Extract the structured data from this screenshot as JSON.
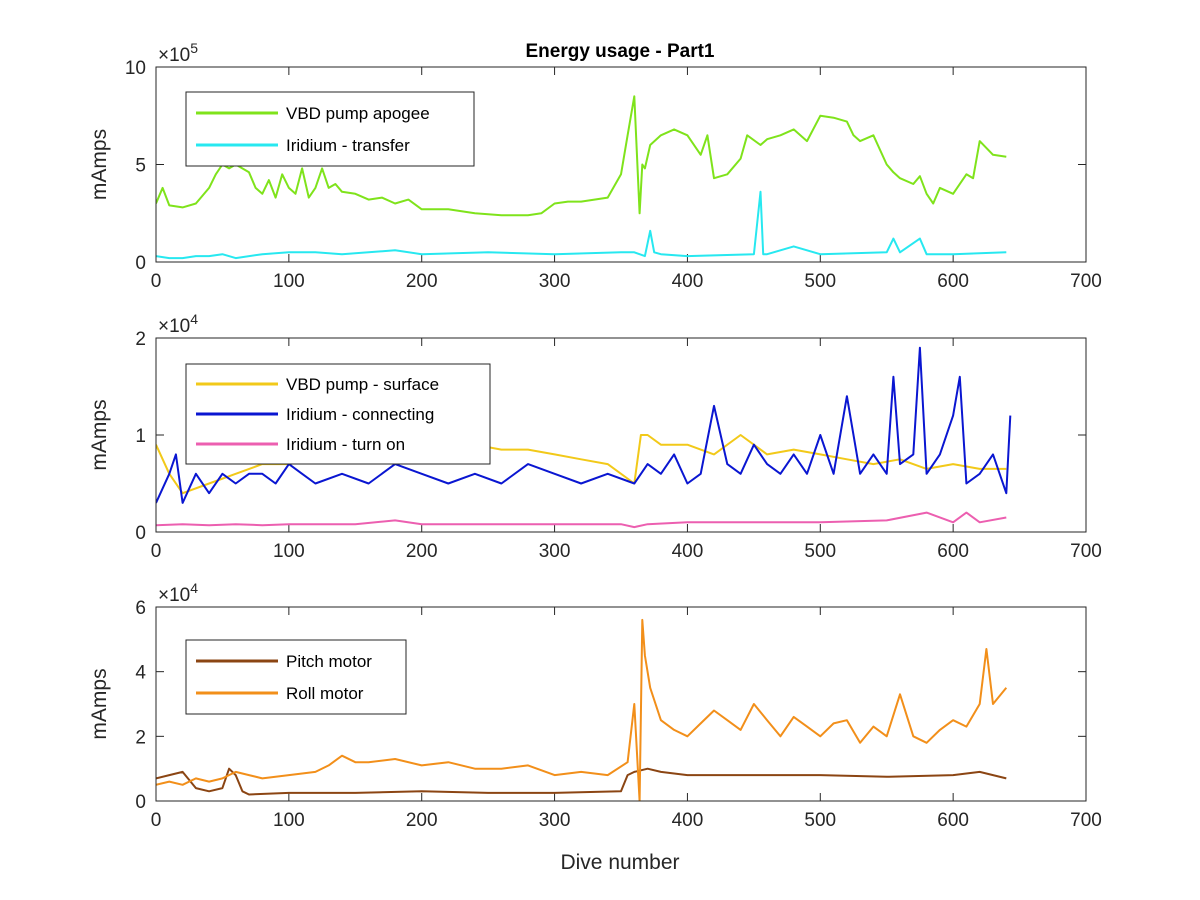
{
  "chart_data": [
    {
      "type": "line",
      "title": "Energy usage - Part1",
      "xlabel": "",
      "ylabel": "mAmps",
      "xlim": [
        0,
        700
      ],
      "ylim": [
        0,
        1000000
      ],
      "xticks": [
        0,
        100,
        200,
        300,
        400,
        500,
        600,
        700
      ],
      "yticks": [
        0,
        5,
        10
      ],
      "y_multiplier": "×10",
      "y_exponent": "5",
      "y_scale": 100000,
      "legend_position": "top-left",
      "series": [
        {
          "name": "VBD pump apogee",
          "color": "#7fe31b",
          "x": [
            0,
            5,
            10,
            20,
            30,
            40,
            45,
            50,
            55,
            60,
            70,
            75,
            80,
            85,
            90,
            95,
            100,
            105,
            110,
            115,
            120,
            125,
            130,
            135,
            140,
            150,
            160,
            170,
            180,
            190,
            200,
            220,
            240,
            260,
            280,
            290,
            300,
            310,
            320,
            330,
            340,
            350,
            355,
            360,
            364,
            366,
            368,
            372,
            380,
            390,
            400,
            410,
            415,
            420,
            430,
            440,
            445,
            455,
            460,
            470,
            480,
            490,
            500,
            510,
            520,
            525,
            530,
            540,
            550,
            555,
            560,
            570,
            575,
            580,
            585,
            590,
            600,
            610,
            615,
            620,
            630,
            640
          ],
          "values": [
            3.0,
            3.8,
            2.9,
            2.8,
            3.0,
            3.8,
            4.5,
            5.0,
            4.8,
            5.0,
            4.6,
            3.8,
            3.5,
            4.2,
            3.3,
            4.5,
            3.8,
            3.5,
            4.8,
            3.3,
            3.8,
            4.8,
            3.8,
            4.0,
            3.6,
            3.5,
            3.2,
            3.3,
            3.0,
            3.2,
            2.7,
            2.7,
            2.5,
            2.4,
            2.4,
            2.5,
            3.0,
            3.1,
            3.1,
            3.2,
            3.3,
            4.5,
            6.5,
            8.5,
            2.5,
            5.0,
            4.8,
            6.0,
            6.5,
            6.8,
            6.5,
            5.5,
            6.5,
            4.3,
            4.5,
            5.3,
            6.5,
            6.0,
            6.3,
            6.5,
            6.8,
            6.2,
            7.5,
            7.4,
            7.2,
            6.5,
            6.2,
            6.5,
            5.0,
            4.6,
            4.3,
            4.0,
            4.4,
            3.5,
            3.0,
            3.8,
            3.5,
            4.5,
            4.3,
            6.2,
            5.5,
            5.4
          ]
        },
        {
          "name": "Iridium - transfer",
          "color": "#27e8f0",
          "x": [
            0,
            10,
            20,
            30,
            40,
            50,
            60,
            80,
            100,
            120,
            140,
            160,
            180,
            200,
            250,
            300,
            350,
            360,
            368,
            372,
            375,
            380,
            400,
            450,
            455,
            457,
            460,
            480,
            500,
            550,
            555,
            560,
            575,
            580,
            600,
            640
          ],
          "values": [
            0.3,
            0.2,
            0.2,
            0.3,
            0.3,
            0.4,
            0.2,
            0.4,
            0.5,
            0.5,
            0.4,
            0.5,
            0.6,
            0.4,
            0.5,
            0.4,
            0.5,
            0.5,
            0.3,
            1.6,
            0.5,
            0.4,
            0.3,
            0.4,
            3.6,
            0.4,
            0.4,
            0.8,
            0.4,
            0.5,
            1.2,
            0.5,
            1.2,
            0.4,
            0.4,
            0.5
          ]
        }
      ]
    },
    {
      "type": "line",
      "title": "",
      "xlabel": "",
      "ylabel": "mAmps",
      "xlim": [
        0,
        700
      ],
      "ylim": [
        0,
        20000
      ],
      "xticks": [
        0,
        100,
        200,
        300,
        400,
        500,
        600,
        700
      ],
      "yticks": [
        0,
        1,
        2
      ],
      "y_multiplier": "×10",
      "y_exponent": "4",
      "y_scale": 10000,
      "legend_position": "top-left",
      "series": [
        {
          "name": "VBD pump - surface",
          "color": "#f2c919",
          "x": [
            0,
            10,
            20,
            40,
            60,
            80,
            100,
            120,
            140,
            160,
            180,
            200,
            220,
            240,
            260,
            280,
            300,
            320,
            340,
            360,
            365,
            370,
            380,
            400,
            420,
            440,
            460,
            480,
            500,
            520,
            540,
            560,
            580,
            600,
            620,
            640
          ],
          "values": [
            0.9,
            0.6,
            0.4,
            0.5,
            0.6,
            0.7,
            0.7,
            0.75,
            0.8,
            0.8,
            0.85,
            0.85,
            0.9,
            0.9,
            0.85,
            0.85,
            0.8,
            0.75,
            0.7,
            0.5,
            1.0,
            1.0,
            0.9,
            0.9,
            0.8,
            1.0,
            0.8,
            0.85,
            0.8,
            0.75,
            0.7,
            0.75,
            0.65,
            0.7,
            0.65,
            0.65
          ]
        },
        {
          "name": "Iridium - connecting",
          "color": "#0a16d1",
          "x": [
            0,
            10,
            15,
            20,
            30,
            40,
            50,
            60,
            70,
            80,
            90,
            100,
            110,
            120,
            140,
            160,
            180,
            200,
            220,
            240,
            260,
            280,
            300,
            320,
            340,
            360,
            370,
            380,
            390,
            400,
            410,
            420,
            430,
            440,
            450,
            460,
            470,
            480,
            490,
            500,
            510,
            520,
            530,
            540,
            550,
            555,
            560,
            570,
            575,
            580,
            590,
            600,
            605,
            610,
            620,
            630,
            640,
            643
          ],
          "values": [
            0.3,
            0.6,
            0.8,
            0.3,
            0.6,
            0.4,
            0.6,
            0.5,
            0.6,
            0.6,
            0.5,
            0.7,
            0.6,
            0.5,
            0.6,
            0.5,
            0.7,
            0.6,
            0.5,
            0.6,
            0.5,
            0.7,
            0.6,
            0.5,
            0.6,
            0.5,
            0.7,
            0.6,
            0.8,
            0.5,
            0.6,
            1.3,
            0.7,
            0.6,
            0.9,
            0.7,
            0.6,
            0.8,
            0.6,
            1.0,
            0.6,
            1.4,
            0.6,
            0.8,
            0.6,
            1.6,
            0.7,
            0.8,
            1.9,
            0.6,
            0.8,
            1.2,
            1.6,
            0.5,
            0.6,
            0.8,
            0.4,
            1.2
          ]
        },
        {
          "name": "Iridium - turn on",
          "color": "#ec5fb0",
          "x": [
            0,
            20,
            40,
            60,
            80,
            100,
            150,
            180,
            200,
            250,
            300,
            350,
            360,
            370,
            400,
            450,
            500,
            550,
            580,
            600,
            610,
            620,
            640
          ],
          "values": [
            0.07,
            0.08,
            0.07,
            0.08,
            0.07,
            0.08,
            0.08,
            0.12,
            0.08,
            0.08,
            0.08,
            0.08,
            0.05,
            0.08,
            0.1,
            0.1,
            0.1,
            0.12,
            0.2,
            0.1,
            0.2,
            0.1,
            0.15
          ]
        }
      ]
    },
    {
      "type": "line",
      "title": "",
      "xlabel": "Dive number",
      "ylabel": "mAmps",
      "xlim": [
        0,
        700
      ],
      "ylim": [
        0,
        60000
      ],
      "xticks": [
        0,
        100,
        200,
        300,
        400,
        500,
        600,
        700
      ],
      "yticks": [
        0,
        2,
        4,
        6
      ],
      "y_multiplier": "×10",
      "y_exponent": "4",
      "y_scale": 10000,
      "legend_position": "top-left",
      "series": [
        {
          "name": "Pitch motor",
          "color": "#8b4513",
          "x": [
            0,
            10,
            20,
            30,
            40,
            50,
            55,
            60,
            65,
            70,
            100,
            150,
            200,
            250,
            300,
            350,
            355,
            360,
            370,
            380,
            400,
            450,
            500,
            550,
            600,
            620,
            630,
            640
          ],
          "values": [
            0.7,
            0.8,
            0.9,
            0.4,
            0.3,
            0.4,
            1.0,
            0.8,
            0.3,
            0.2,
            0.25,
            0.25,
            0.3,
            0.25,
            0.25,
            0.3,
            0.8,
            0.9,
            1.0,
            0.9,
            0.8,
            0.8,
            0.8,
            0.75,
            0.8,
            0.9,
            0.8,
            0.7
          ]
        },
        {
          "name": "Roll motor",
          "color": "#f28f1a",
          "x": [
            0,
            10,
            20,
            30,
            40,
            50,
            60,
            70,
            80,
            100,
            120,
            130,
            140,
            150,
            160,
            180,
            200,
            220,
            240,
            260,
            280,
            300,
            320,
            340,
            355,
            360,
            364,
            366,
            368,
            372,
            380,
            390,
            400,
            410,
            420,
            430,
            440,
            450,
            460,
            470,
            480,
            490,
            500,
            510,
            520,
            530,
            540,
            550,
            560,
            570,
            580,
            590,
            600,
            610,
            620,
            625,
            630,
            640
          ],
          "values": [
            0.5,
            0.6,
            0.5,
            0.7,
            0.6,
            0.7,
            0.9,
            0.8,
            0.7,
            0.8,
            0.9,
            1.1,
            1.4,
            1.2,
            1.2,
            1.3,
            1.1,
            1.2,
            1.0,
            1.0,
            1.1,
            0.8,
            0.9,
            0.8,
            1.2,
            3.0,
            0.0,
            5.6,
            4.5,
            3.5,
            2.5,
            2.2,
            2.0,
            2.4,
            2.8,
            2.5,
            2.2,
            3.0,
            2.5,
            2.0,
            2.6,
            2.3,
            2.0,
            2.4,
            2.5,
            1.8,
            2.3,
            2.0,
            3.3,
            2.0,
            1.8,
            2.2,
            2.5,
            2.3,
            3.0,
            4.7,
            3.0,
            3.5
          ]
        }
      ]
    }
  ]
}
